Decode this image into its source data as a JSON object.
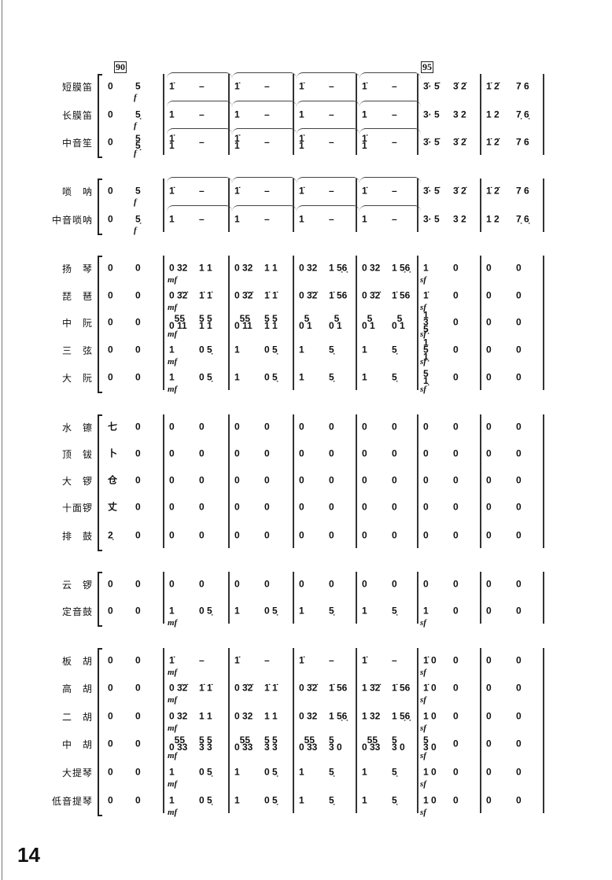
{
  "page_number": "14",
  "rehearsal_marks": [
    "90",
    "95"
  ],
  "groups": [
    {
      "rows": [
        {
          "name": "短膜笛",
          "pre": [
            "0",
            "5"
          ],
          "pre_dyn": "f",
          "measures": [
            [
              "1̇",
              "–"
            ],
            [
              "1̇",
              "–"
            ],
            [
              "1̇",
              "–"
            ],
            [
              "1̇",
              "–"
            ],
            [
              "3̇· 5̇",
              "3̇ 2̇"
            ],
            [
              "1̇ 2̇",
              "7 6"
            ]
          ],
          "slurs": true
        },
        {
          "name": "长膜笛",
          "pre": [
            "0",
            "5̣"
          ],
          "pre_dyn": "f",
          "measures": [
            [
              "1",
              "–"
            ],
            [
              "1",
              "–"
            ],
            [
              "1",
              "–"
            ],
            [
              "1",
              "–"
            ],
            [
              "3· 5",
              "3 2"
            ],
            [
              "1 2",
              "7̣ 6̣"
            ]
          ],
          "slurs": true
        },
        {
          "name": "中音笙",
          "pre": [
            "0",
            "5\n5̣"
          ],
          "pre_dyn": "f",
          "measures": [
            [
              "1̇\n1",
              "–"
            ],
            [
              "1̇\n1",
              "–"
            ],
            [
              "1̇\n1",
              "–"
            ],
            [
              "1̇\n1",
              "–"
            ],
            [
              "3̇· 5̇",
              "3̇ 2̇"
            ],
            [
              "1̇ 2̇",
              "7 6"
            ]
          ],
          "slurs": true
        }
      ]
    },
    {
      "rows": [
        {
          "name": "唢　呐",
          "pre": [
            "0",
            "5"
          ],
          "pre_dyn": "f",
          "measures": [
            [
              "1̇",
              "–"
            ],
            [
              "1̇",
              "–"
            ],
            [
              "1̇",
              "–"
            ],
            [
              "1̇",
              "–"
            ],
            [
              "3̇· 5̇",
              "3̇ 2̇"
            ],
            [
              "1̇ 2̇",
              "7 6"
            ]
          ],
          "slurs": true
        },
        {
          "name": "中音唢呐",
          "pre": [
            "0",
            "5̣"
          ],
          "pre_dyn": "f",
          "measures": [
            [
              "1",
              "–"
            ],
            [
              "1",
              "–"
            ],
            [
              "1",
              "–"
            ],
            [
              "1",
              "–"
            ],
            [
              "3· 5",
              "3 2"
            ],
            [
              "1 2",
              "7̣ 6̣"
            ]
          ],
          "slurs": true
        }
      ]
    },
    {
      "rows": [
        {
          "name": "扬　琴",
          "pre": [
            "0",
            "0"
          ],
          "measures": [
            [
              "0 32",
              "1 1"
            ],
            [
              "0 32",
              "1 1"
            ],
            [
              "0 32",
              "1 5̣6̣"
            ],
            [
              "0 32",
              "1 5̣6̣"
            ],
            [
              "1",
              "0"
            ],
            [
              "0",
              "0"
            ]
          ],
          "dyn": [
            "mf",
            "sf"
          ]
        },
        {
          "name": "琵　琶",
          "pre": [
            "0",
            "0"
          ],
          "measures": [
            [
              "0 3̇2̇",
              "1̇ 1̇"
            ],
            [
              "0 3̇2̇",
              "1̇ 1̇"
            ],
            [
              "0 3̇2̇",
              "1̇ 56"
            ],
            [
              "0 3̇2̇",
              "1̇ 56"
            ],
            [
              "1̇",
              "0"
            ],
            [
              "0",
              "0"
            ]
          ],
          "dyn": [
            "mf",
            "sf"
          ]
        },
        {
          "name": "中　阮",
          "pre": [
            "0",
            "0"
          ],
          "measures": [
            [
              "  55\n0 11",
              "5 5\n1 1"
            ],
            [
              "  55\n0 11",
              "5 5\n1 1"
            ],
            [
              "  5\n0 1",
              "  5\n0 1"
            ],
            [
              "  5\n0 1",
              "  5\n0 1"
            ],
            [
              "1\n3\n5̣",
              "0"
            ],
            [
              "0",
              "0"
            ]
          ],
          "dyn": [
            "mf",
            "sf"
          ]
        },
        {
          "name": "三　弦",
          "pre": [
            "0",
            "0"
          ],
          "measures": [
            [
              "1",
              "0 5̣"
            ],
            [
              "1",
              "0 5̣"
            ],
            [
              "1",
              "5̣"
            ],
            [
              "1",
              "5̣"
            ],
            [
              "1\n5\n1̣",
              "0"
            ],
            [
              "0",
              "0"
            ]
          ],
          "dyn": [
            "mf",
            "sf"
          ]
        },
        {
          "name": "大　阮",
          "pre": [
            "0",
            "0"
          ],
          "measures": [
            [
              "1",
              "0 5̣"
            ],
            [
              "1",
              "0 5̣"
            ],
            [
              "1",
              "5̣"
            ],
            [
              "1",
              "5̣"
            ],
            [
              "5\n1̣",
              "0"
            ],
            [
              "0",
              "0"
            ]
          ],
          "dyn": [
            "mf",
            "sf"
          ]
        }
      ]
    },
    {
      "rows": [
        {
          "name": "水　镲",
          "pre": [
            "七",
            "0"
          ],
          "measures": [
            [
              "0",
              "0"
            ],
            [
              "0",
              "0"
            ],
            [
              "0",
              "0"
            ],
            [
              "0",
              "0"
            ],
            [
              "0",
              "0"
            ],
            [
              "0",
              "0"
            ]
          ]
        },
        {
          "name": "顶　钹",
          "pre": [
            "卜",
            "0"
          ],
          "measures": [
            [
              "0",
              "0"
            ],
            [
              "0",
              "0"
            ],
            [
              "0",
              "0"
            ],
            [
              "0",
              "0"
            ],
            [
              "0",
              "0"
            ],
            [
              "0",
              "0"
            ]
          ]
        },
        {
          "name": "大　锣",
          "pre": [
            "仓",
            "0"
          ],
          "measures": [
            [
              "0",
              "0"
            ],
            [
              "0",
              "0"
            ],
            [
              "0",
              "0"
            ],
            [
              "0",
              "0"
            ],
            [
              "0",
              "0"
            ],
            [
              "0",
              "0"
            ]
          ]
        },
        {
          "name": "十面锣",
          "pre": [
            "丈",
            "0"
          ],
          "measures": [
            [
              "0",
              "0"
            ],
            [
              "0",
              "0"
            ],
            [
              "0",
              "0"
            ],
            [
              "0",
              "0"
            ],
            [
              "0",
              "0"
            ],
            [
              "0",
              "0"
            ]
          ]
        },
        {
          "name": "排　鼓",
          "pre": [
            "2̣",
            "0"
          ],
          "measures": [
            [
              "0",
              "0"
            ],
            [
              "0",
              "0"
            ],
            [
              "0",
              "0"
            ],
            [
              "0",
              "0"
            ],
            [
              "0",
              "0"
            ],
            [
              "0",
              "0"
            ]
          ]
        }
      ]
    },
    {
      "rows": [
        {
          "name": "云　锣",
          "pre": [
            "0",
            "0"
          ],
          "measures": [
            [
              "0",
              "0"
            ],
            [
              "0",
              "0"
            ],
            [
              "0",
              "0"
            ],
            [
              "0",
              "0"
            ],
            [
              "0",
              "0"
            ],
            [
              "0",
              "0"
            ]
          ]
        },
        {
          "name": "定音鼓",
          "pre": [
            "0",
            "0"
          ],
          "measures": [
            [
              "1",
              "0 5̣"
            ],
            [
              "1",
              "0 5̣"
            ],
            [
              "1",
              "5̣"
            ],
            [
              "1",
              "5̣"
            ],
            [
              "1",
              "0"
            ],
            [
              "0",
              "0"
            ]
          ],
          "dyn": [
            "mf",
            "sf"
          ]
        }
      ]
    },
    {
      "rows": [
        {
          "name": "板　胡",
          "pre": [
            "0",
            "0"
          ],
          "measures": [
            [
              "1̇",
              "–"
            ],
            [
              "1̇",
              "–"
            ],
            [
              "1̇",
              "–"
            ],
            [
              "1̇",
              "–"
            ],
            [
              "1̇ 0",
              "0"
            ],
            [
              "0",
              "0"
            ]
          ],
          "dyn": [
            "mf",
            "sf"
          ]
        },
        {
          "name": "高　胡",
          "pre": [
            "0",
            "0"
          ],
          "measures": [
            [
              "0 3̇2̇",
              "1̇ 1̇"
            ],
            [
              "0 3̇2̇",
              "1̇ 1̇"
            ],
            [
              "0 3̇2̇",
              "1̇ 56"
            ],
            [
              "1 3̇2̇",
              "1̇ 56"
            ],
            [
              "1̇ 0",
              "0"
            ],
            [
              "0",
              "0"
            ]
          ],
          "dyn": [
            "mf",
            "sf"
          ]
        },
        {
          "name": "二　胡",
          "pre": [
            "0",
            "0"
          ],
          "measures": [
            [
              "0 32",
              "1 1"
            ],
            [
              "0 32",
              "1 1"
            ],
            [
              "0 32",
              "1 5̣6̣"
            ],
            [
              "1 32",
              "1 5̣6̣"
            ],
            [
              "1 0",
              "0"
            ],
            [
              "0",
              "0"
            ]
          ],
          "dyn": [
            "mf",
            "sf"
          ]
        },
        {
          "name": "中　胡",
          "pre": [
            "0",
            "0"
          ],
          "measures": [
            [
              "  55\n0 33",
              "5 5\n3 3"
            ],
            [
              "  55\n0 33",
              "5 5\n3 3"
            ],
            [
              "  55\n0 33",
              "5\n3 0"
            ],
            [
              "  55\n0 33",
              "5\n3 0"
            ],
            [
              "5\n3 0",
              "0"
            ],
            [
              "0",
              "0"
            ]
          ],
          "dyn": [
            "mf",
            "sf"
          ]
        },
        {
          "name": "大提琴",
          "pre": [
            "0",
            "0"
          ],
          "measures": [
            [
              "1",
              "0 5̣"
            ],
            [
              "1",
              "0 5̣"
            ],
            [
              "1",
              "5̣"
            ],
            [
              "1",
              "5̣"
            ],
            [
              "1 0",
              "0"
            ],
            [
              "0",
              "0"
            ]
          ],
          "dyn": [
            "mf",
            "sf"
          ]
        },
        {
          "name": "低音提琴",
          "pre": [
            "0",
            "0"
          ],
          "measures": [
            [
              "1",
              "0 5̣"
            ],
            [
              "1",
              "0 5̣"
            ],
            [
              "1",
              "5̣"
            ],
            [
              "1",
              "5̣"
            ],
            [
              "1 0",
              "0"
            ],
            [
              "0",
              "0"
            ]
          ],
          "dyn": [
            "mf",
            "sf"
          ]
        }
      ]
    }
  ]
}
